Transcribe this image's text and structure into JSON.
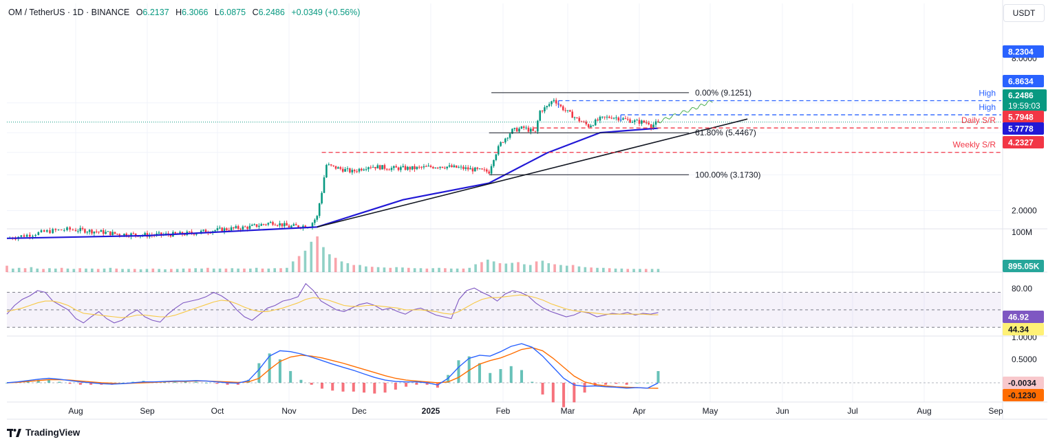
{
  "header": {
    "symbol": "OM / TetherUS · 1D · BINANCE",
    "open_label": "O",
    "open": "6.2137",
    "high_label": "H",
    "high": "6.3066",
    "low_label": "L",
    "low": "6.0875",
    "close_label": "C",
    "close": "6.2486",
    "change": "+0.0349 (+0.56%)"
  },
  "currency_button": "USDT",
  "brand": "TradingView",
  "chart_data": [
    {
      "type": "candlestick",
      "panel": "price",
      "x_labels": [
        "Aug",
        "Sep",
        "Oct",
        "Nov",
        "Dec",
        "2025",
        "Feb",
        "Mar",
        "Apr",
        "May",
        "Jun",
        "Jul",
        "Aug",
        "Sep"
      ],
      "y_scale": "log",
      "y_tick_labels": [
        "2.0000",
        "8.0000"
      ],
      "ylim": [
        1.45,
        10.6
      ],
      "close_path": [
        [
          "2024-07-08",
          1.4
        ],
        [
          "2024-07-15",
          1.46
        ],
        [
          "2024-07-22",
          1.53
        ],
        [
          "2024-07-29",
          1.57
        ],
        [
          "2024-08-05",
          1.55
        ],
        [
          "2024-08-12",
          1.52
        ],
        [
          "2024-08-19",
          1.48
        ],
        [
          "2024-09-02",
          1.46
        ],
        [
          "2024-09-16",
          1.48
        ],
        [
          "2024-10-01",
          1.56
        ],
        [
          "2024-10-15",
          1.62
        ],
        [
          "2024-10-25",
          1.72
        ],
        [
          "2024-11-01",
          1.63
        ],
        [
          "2024-11-10",
          1.65
        ],
        [
          "2024-11-13",
          1.85
        ],
        [
          "2024-11-15",
          2.55
        ],
        [
          "2024-11-17",
          3.6
        ],
        [
          "2024-11-20",
          3.5
        ],
        [
          "2024-11-28",
          3.3
        ],
        [
          "2024-12-05",
          3.55
        ],
        [
          "2024-12-15",
          3.45
        ],
        [
          "2024-12-25",
          3.45
        ],
        [
          "2025-01-05",
          3.55
        ],
        [
          "2025-01-15",
          3.45
        ],
        [
          "2025-01-26",
          3.3
        ],
        [
          "2025-01-28",
          3.95
        ],
        [
          "2025-01-31",
          4.75
        ],
        [
          "2025-02-05",
          5.6
        ],
        [
          "2025-02-10",
          5.8
        ],
        [
          "2025-02-15",
          5.45
        ],
        [
          "2025-02-17",
          7.2
        ],
        [
          "2025-02-20",
          7.6
        ],
        [
          "2025-02-23",
          8.4
        ],
        [
          "2025-02-26",
          7.6
        ],
        [
          "2025-03-01",
          7.1
        ],
        [
          "2025-03-05",
          6.5
        ],
        [
          "2025-03-10",
          5.95
        ],
        [
          "2025-03-15",
          6.5
        ],
        [
          "2025-03-20",
          6.7
        ],
        [
          "2025-03-25",
          6.5
        ],
        [
          "2025-03-30",
          6.3
        ],
        [
          "2025-04-05",
          6.2
        ],
        [
          "2025-04-06",
          5.95
        ],
        [
          "2025-04-09",
          6.2486
        ]
      ],
      "projection_path": [
        [
          "2025-04-09",
          6.25
        ],
        [
          "2025-04-17",
          6.9
        ],
        [
          "2025-04-25",
          7.5
        ],
        [
          "2025-05-02",
          8.2304
        ]
      ],
      "moving_average": {
        "color": "#2118d6",
        "last": "5.7778",
        "path": [
          [
            "2024-07-08",
            1.4
          ],
          [
            "2024-09-01",
            1.45
          ],
          [
            "2024-11-13",
            1.62
          ],
          [
            "2024-12-20",
            2.3
          ],
          [
            "2025-01-26",
            2.85
          ],
          [
            "2025-02-20",
            4.2
          ],
          [
            "2025-03-15",
            5.45
          ],
          [
            "2025-04-09",
            5.78
          ]
        ]
      },
      "trendline": {
        "from": [
          "2024-11-13",
          1.62
        ],
        "to": [
          "2025-05-17",
          6.5
        ]
      },
      "fibonacci": [
        {
          "label": "0.00% (9.1251)",
          "value": 9.1251
        },
        {
          "label": "61.80% (5.4467)",
          "value": 5.4467
        },
        {
          "label": "100.00% (3.1730)",
          "value": 3.173
        }
      ],
      "levels": [
        {
          "label": "High",
          "value": 8.2304,
          "tag": "8.2304",
          "color": "#2962ff"
        },
        {
          "label": "High",
          "value": 6.8634,
          "tag": "6.8634",
          "color": "#2962ff"
        },
        {
          "label": "Daily S/R",
          "value": 5.7948,
          "tag": "5.7948",
          "color": "#f23645"
        },
        {
          "label": "Weekly S/R",
          "value": 4.2327,
          "tag": "4.2327",
          "color": "#f23645"
        }
      ],
      "last_price": {
        "value": "6.2486",
        "countdown": "19:59:03",
        "color": "#089981"
      }
    },
    {
      "type": "bar",
      "panel": "volume",
      "y_tick_labels": [
        "100M"
      ],
      "last": "895.05K",
      "bars_millions": [
        18,
        10,
        12,
        11,
        14,
        10,
        9,
        11,
        10,
        12,
        10,
        9,
        11,
        10,
        10,
        9,
        10,
        12,
        10,
        9,
        9,
        9,
        8,
        9,
        10,
        9,
        8,
        9,
        9,
        10,
        10,
        11,
        10,
        12,
        10,
        10,
        10,
        11,
        10,
        10,
        10,
        12,
        10,
        10,
        11,
        11,
        12,
        30,
        45,
        60,
        85,
        100,
        70,
        50,
        40,
        30,
        25,
        20,
        20,
        16,
        15,
        14,
        13,
        12,
        14,
        13,
        12,
        11,
        11,
        10,
        11,
        12,
        11,
        10,
        10,
        10,
        12,
        22,
        28,
        35,
        30,
        25,
        24,
        26,
        28,
        22,
        20,
        30,
        32,
        25,
        22,
        20,
        18,
        20,
        16,
        14,
        13,
        12,
        12,
        11,
        10,
        10,
        9,
        9,
        9,
        9,
        9,
        9
      ]
    },
    {
      "type": "line",
      "panel": "rsi",
      "y_tick_labels": [
        "80.00"
      ],
      "overbought": 70,
      "oversold": 30,
      "series": [
        {
          "color": "#7e57c2",
          "last": "46.92",
          "values": [
            45,
            55,
            62,
            66,
            72,
            70,
            60,
            55,
            50,
            40,
            35,
            42,
            48,
            40,
            35,
            38,
            45,
            50,
            42,
            38,
            36,
            45,
            52,
            58,
            60,
            62,
            65,
            70,
            66,
            60,
            50,
            42,
            38,
            45,
            52,
            55,
            60,
            62,
            65,
            80,
            72,
            60,
            55,
            50,
            48,
            52,
            56,
            58,
            55,
            50,
            52,
            48,
            45,
            50,
            52,
            48,
            44,
            42,
            40,
            62,
            72,
            75,
            70,
            66,
            60,
            68,
            72,
            70,
            66,
            58,
            52,
            48,
            45,
            42,
            44,
            48,
            46,
            42,
            44,
            46,
            45,
            47,
            44,
            46,
            45,
            46.92
          ]
        },
        {
          "color": "#f7c843",
          "last": "44.34",
          "values": [
            48,
            50,
            52,
            55,
            58,
            60,
            60,
            58,
            55,
            50,
            46,
            45,
            44,
            43,
            42,
            41,
            42,
            44,
            44,
            43,
            42,
            42,
            44,
            47,
            50,
            53,
            56,
            59,
            61,
            60,
            57,
            53,
            50,
            48,
            48,
            50,
            52,
            55,
            58,
            62,
            64,
            63,
            61,
            58,
            55,
            54,
            54,
            55,
            55,
            54,
            53,
            52,
            50,
            50,
            50,
            49,
            48,
            46,
            45,
            48,
            53,
            58,
            62,
            64,
            64,
            65,
            66,
            67,
            66,
            64,
            61,
            57,
            54,
            51,
            49,
            48,
            47,
            46,
            45,
            45,
            45,
            45,
            45,
            45,
            44.5,
            44.34
          ]
        }
      ]
    },
    {
      "type": "line",
      "panel": "macd",
      "y_tick_labels": [
        "1.0000",
        "0.5000"
      ],
      "ylim": [
        -0.35,
        1.1
      ],
      "macd_line": {
        "color": "#2962ff",
        "last": "-0.0034",
        "values": [
          0,
          0.02,
          0.05,
          0.08,
          0.1,
          0.08,
          0.05,
          0.02,
          0,
          -0.02,
          -0.03,
          -0.02,
          0,
          0.02,
          0.02,
          0.03,
          0.04,
          0.04,
          0.05,
          0.04,
          0.02,
          0,
          -0.01,
          0.05,
          0.3,
          0.6,
          0.72,
          0.7,
          0.65,
          0.58,
          0.5,
          0.42,
          0.35,
          0.28,
          0.2,
          0.12,
          0.06,
          0.03,
          0.02,
          0.02,
          0,
          -0.05,
          0.1,
          0.35,
          0.55,
          0.62,
          0.6,
          0.7,
          0.82,
          0.88,
          0.8,
          0.6,
          0.35,
          0.1,
          -0.05,
          -0.08,
          -0.07,
          -0.09,
          -0.1,
          -0.12,
          -0.11,
          -0.12,
          -0.0034
        ]
      },
      "signal_line": {
        "color": "#ff6d00",
        "last": "-0.1230",
        "values": [
          0,
          0.01,
          0.03,
          0.05,
          0.07,
          0.07,
          0.06,
          0.04,
          0.02,
          0,
          -0.01,
          -0.02,
          -0.01,
          0,
          0.01,
          0.02,
          0.03,
          0.03,
          0.04,
          0.04,
          0.03,
          0.02,
          0.01,
          0.02,
          0.1,
          0.3,
          0.48,
          0.58,
          0.62,
          0.6,
          0.56,
          0.5,
          0.44,
          0.37,
          0.3,
          0.23,
          0.16,
          0.1,
          0.06,
          0.04,
          0.02,
          0,
          0.02,
          0.12,
          0.28,
          0.42,
          0.5,
          0.56,
          0.65,
          0.75,
          0.79,
          0.72,
          0.55,
          0.35,
          0.15,
          0.02,
          -0.04,
          -0.07,
          -0.09,
          -0.1,
          -0.11,
          -0.12,
          -0.123
        ]
      }
    }
  ]
}
